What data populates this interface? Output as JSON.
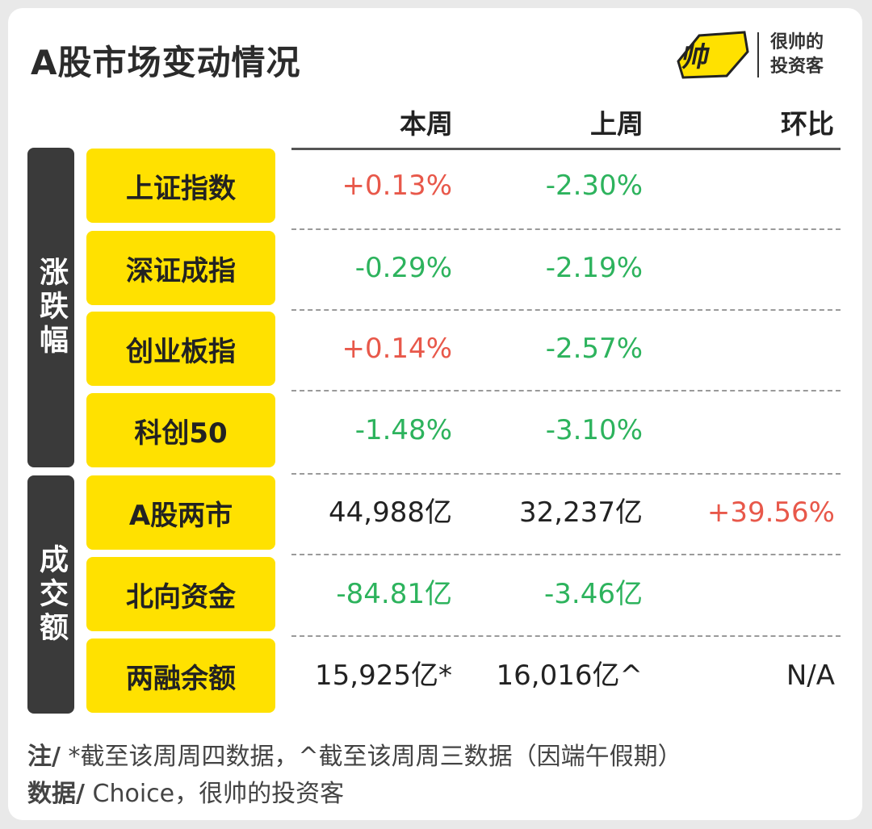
{
  "title": "A股市场变动情况",
  "logo": {
    "name": "很帅的投资客",
    "line1": "很帅的",
    "line2": "投资客",
    "icon": "shuai-logo-icon",
    "color": "#ffe100"
  },
  "columns": [
    "本周",
    "上周",
    "环比"
  ],
  "groups": [
    {
      "label": "涨跌幅"
    },
    {
      "label": "成交额"
    }
  ],
  "rows": [
    {
      "label": "上证指数",
      "this_week": "+0.13%",
      "last_week": "-2.30%",
      "change": ""
    },
    {
      "label": "深证成指",
      "this_week": "-0.29%",
      "last_week": "-2.19%",
      "change": ""
    },
    {
      "label": "创业板指",
      "this_week": "+0.14%",
      "last_week": "-2.57%",
      "change": ""
    },
    {
      "label": "科创50",
      "this_week": "-1.48%",
      "last_week": "-3.10%",
      "change": ""
    },
    {
      "label": "A股两市",
      "this_week": "44,988亿",
      "last_week": "32,237亿",
      "change": "+39.56%"
    },
    {
      "label": "北向资金",
      "this_week": "-84.81亿",
      "last_week": "-3.46亿",
      "change": ""
    },
    {
      "label": "两融余额",
      "this_week": "15,925亿*",
      "last_week": "16,016亿^",
      "change": "N/A"
    }
  ],
  "notes": {
    "note_prefix": "注/",
    "note_text": " *截至该周周四数据，^截至该周周三数据（因端午假期）",
    "source_prefix": "数据/",
    "source_text": " Choice，很帅的投资客"
  },
  "colors": {
    "accent": "#ffe100",
    "up": "#e8584a",
    "down": "#2db35d",
    "tag_bg": "#3a3a3a"
  }
}
